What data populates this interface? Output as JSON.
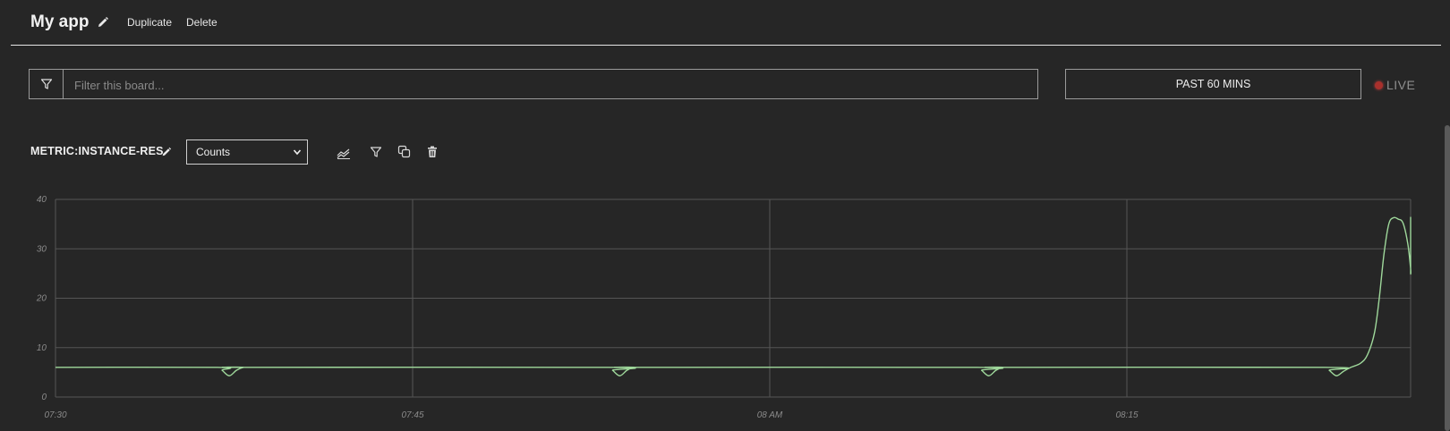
{
  "header": {
    "app_title": "My app",
    "duplicate_label": "Duplicate",
    "delete_label": "Delete"
  },
  "filter": {
    "placeholder": "Filter this board...",
    "value": ""
  },
  "time_range": {
    "label": "PAST 60 MINS"
  },
  "live": {
    "label": "LIVE",
    "dot_color": "#a8302c"
  },
  "metric": {
    "title": "METRIC:INSTANCE-RES",
    "aggregation_selected": "Counts",
    "toolbar_icons": [
      "chart-type-icon",
      "filter-icon",
      "duplicate-icon",
      "trash-icon"
    ]
  },
  "colors": {
    "background": "#262626",
    "line": "#9fd89b",
    "grid": "#555555"
  },
  "chart_data": {
    "type": "line",
    "xlabel": "",
    "ylabel": "",
    "x_ticks": [
      "07:30",
      "07:45",
      "08 AM",
      "08:15"
    ],
    "x_tick_minutes": [
      0,
      15,
      30,
      45
    ],
    "xlim_minutes": [
      0,
      57
    ],
    "ylim": [
      0,
      40
    ],
    "y_ticks": [
      "0",
      "10",
      "20",
      "30",
      "40"
    ],
    "y_tick_values": [
      0,
      10,
      20,
      30,
      40
    ],
    "grid": true,
    "series": [
      {
        "x_minutes": [
          0,
          6.8,
          7.0,
          7.3,
          7.6,
          7.9,
          8.2,
          23.2,
          23.4,
          23.7,
          24.0,
          24.3,
          24.6,
          38.7,
          38.9,
          39.2,
          39.5,
          39.8,
          40.1,
          53.3,
          53.5,
          53.8,
          54.1,
          54.4,
          54.8,
          55.1,
          55.4,
          55.6,
          55.8,
          56.0,
          56.2,
          56.4,
          56.6,
          56.8,
          57.0,
          57.2,
          57.4,
          57.6,
          57.8,
          58.0,
          58.2,
          58.4
        ],
        "values": [
          6,
          6,
          5.4,
          4.3,
          5.4,
          6,
          6,
          6,
          5.4,
          4.3,
          5.4,
          6,
          6,
          6,
          5.4,
          4.3,
          5.4,
          6,
          6,
          6,
          5.4,
          4.3,
          5.2,
          6,
          6.8,
          8.5,
          13,
          20,
          29,
          35,
          36.3,
          36,
          35.2,
          31,
          26,
          25,
          28,
          34,
          36.2,
          36.2,
          36.2,
          36.2
        ]
      }
    ]
  }
}
